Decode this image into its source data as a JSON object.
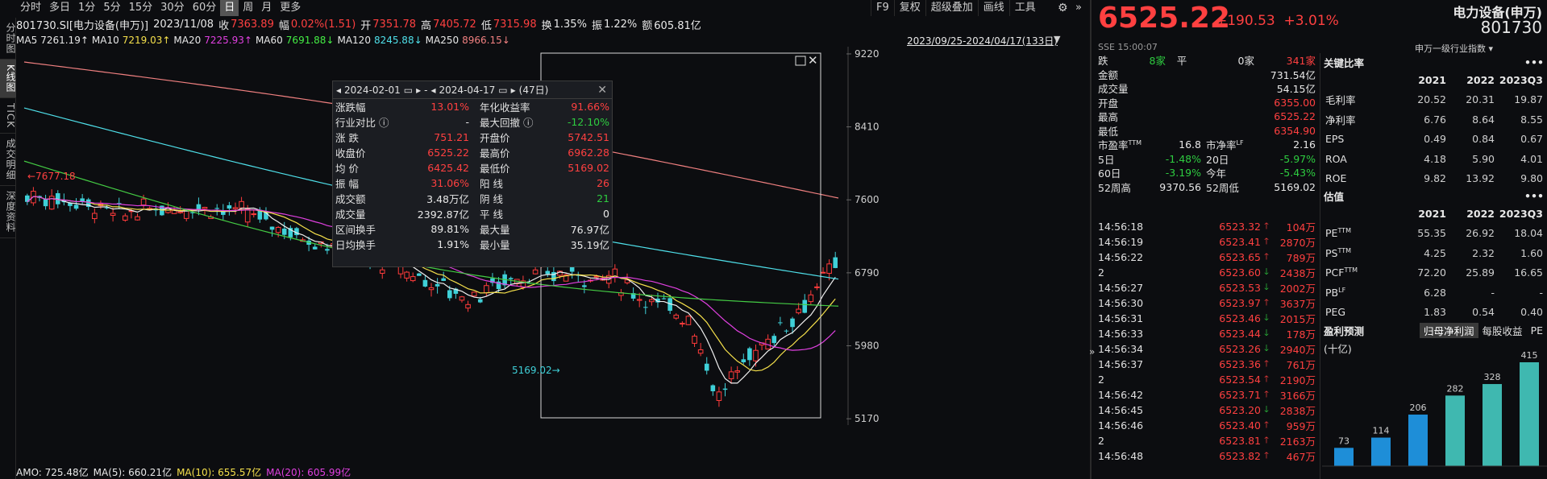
{
  "nav": {
    "vertical": [
      "分时图",
      "K线图",
      "TICK",
      "成交明细",
      "深度资料"
    ],
    "vertical_active": 1
  },
  "periods": {
    "items": [
      "分时",
      "多日",
      "1分",
      "5分",
      "15分",
      "30分",
      "60分",
      "日",
      "周",
      "月",
      "更多"
    ],
    "active": 7
  },
  "tools": [
    "F9",
    "复权",
    "超级叠加",
    "画线",
    "工具"
  ],
  "info": {
    "code": "801730.SI[电力设备(申万)]",
    "date": "2023/11/08",
    "close_label": "收",
    "close": "7363.89",
    "amp_label": "幅",
    "amp": "0.02%(1.51)",
    "open_label": "开",
    "open": "7351.78",
    "high_label": "高",
    "high": "7405.72",
    "low_label": "低",
    "low": "7315.98",
    "turn_label": "换",
    "turn": "1.35%",
    "zhen_label": "振",
    "zhen": "1.22%",
    "amt_label": "额",
    "amt": "605.81亿"
  },
  "ma": {
    "ma5_label": "MA5",
    "ma5": "7261.19↑",
    "ma10_label": "MA10",
    "ma10": "7219.03↑",
    "ma20_label": "MA20",
    "ma20": "7225.93↑",
    "ma60_label": "MA60",
    "ma60": "7691.88↓",
    "ma120_label": "MA120",
    "ma120": "8245.88↓",
    "ma250_label": "MA250",
    "ma250": "8966.15↓"
  },
  "range_label": "2023/09/25-2024/04/17(133日)",
  "chart_data": {
    "type": "candlestick",
    "y_ticks": [
      "9220",
      "8410",
      "7600",
      "6790",
      "5980",
      "5170"
    ],
    "y_tick_values": [
      9220,
      8410,
      7600,
      6790,
      5980,
      5170
    ],
    "ylim": [
      5100,
      9300
    ],
    "annotations": [
      "7677.18",
      "5169.02"
    ],
    "ma_colors": {
      "ma5": "#f0f0f0",
      "ma10": "#f5e04b",
      "ma20": "#e040e0",
      "ma60": "#44cc44",
      "ma120": "#4fe0ea",
      "ma250": "#f08080"
    }
  },
  "popup": {
    "start": "2024-02-01",
    "dash": "-",
    "end": "2024-04-17",
    "days": "(47日)",
    "rows": [
      {
        "k1": "涨跌幅",
        "v1": "13.01%",
        "c1": "red",
        "k2": "年化收益率",
        "v2": "91.66%",
        "c2": "red"
      },
      {
        "k1": "行业对比 ⓘ",
        "v1": "-",
        "c1": "white",
        "k2": "最大回撤 ⓘ",
        "v2": "-12.10%",
        "c2": "green"
      },
      {
        "k1": "涨 跌",
        "v1": "751.21",
        "c1": "red",
        "k2": "开盘价",
        "v2": "5742.51",
        "c2": "red"
      },
      {
        "k1": "收盘价",
        "v1": "6525.22",
        "c1": "red",
        "k2": "最高价",
        "v2": "6962.28",
        "c2": "red"
      },
      {
        "k1": "均 价",
        "v1": "6425.42",
        "c1": "red",
        "k2": "最低价",
        "v2": "5169.02",
        "c2": "red"
      },
      {
        "k1": "振 幅",
        "v1": "31.06%",
        "c1": "red",
        "k2": "阳 线",
        "v2": "26",
        "c2": "red"
      },
      {
        "k1": "成交额",
        "v1": "3.48万亿",
        "c1": "white",
        "k2": "阴 线",
        "v2": "21",
        "c2": "green"
      },
      {
        "k1": "成交量",
        "v1": "2392.87亿",
        "c1": "white",
        "k2": "平 线",
        "v2": "0",
        "c2": "white"
      },
      {
        "k1": "区间换手",
        "v1": "89.81%",
        "c1": "white",
        "k2": "最大量",
        "v2": "76.97亿",
        "c2": "white"
      },
      {
        "k1": "日均换手",
        "v1": "1.91%",
        "c1": "white",
        "k2": "最小量",
        "v2": "35.19亿",
        "c2": "white"
      }
    ]
  },
  "amo": {
    "amo": "AMO: 725.48亿",
    "ma5": "MA(5): 660.21亿",
    "ma10": "MA(10): 655.57亿",
    "ma20": "MA(20): 605.99亿"
  },
  "quote": {
    "price": "6525.22",
    "change": "+190.53",
    "pct": "+3.01%",
    "name": "电力设备(申万)",
    "code": "801730",
    "exchange": "SSE",
    "time": "15:00:07",
    "industry": "申万一级行业指数",
    "updown": {
      "die_label": "跌",
      "die": "8家",
      "ping_label": "平",
      "ping": "0家",
      "zhang": "341家"
    },
    "rows": [
      {
        "k": "金额",
        "v": "731.54亿",
        "c": "white"
      },
      {
        "k": "成交量",
        "v": "54.15亿",
        "c": "white"
      },
      {
        "k": "开盘",
        "v": "6355.00",
        "c": "red"
      },
      {
        "k": "最高",
        "v": "6525.22",
        "c": "red"
      },
      {
        "k": "最低",
        "v": "6354.90",
        "c": "red"
      }
    ],
    "pairs": [
      {
        "k1": "市盈率TTM",
        "v1": "16.8",
        "c1": "white",
        "k2": "市净率LF",
        "v2": "2.16",
        "c2": "white"
      },
      {
        "k1": "5日",
        "v1": "-1.48%",
        "c1": "green",
        "k2": "20日",
        "v2": "-5.97%",
        "c2": "green"
      },
      {
        "k1": "60日",
        "v1": "-3.19%",
        "c1": "green",
        "k2": "今年",
        "v2": "-5.43%",
        "c2": "green"
      },
      {
        "k1": "52周高",
        "v1": "9370.56",
        "c1": "white",
        "k2": "52周低",
        "v2": "5169.02",
        "c2": "white"
      }
    ]
  },
  "ticks": [
    {
      "t": "14:56:18",
      "p": "6523.32",
      "d": "up",
      "q": "104万"
    },
    {
      "t": "14:56:19",
      "p": "6523.41",
      "d": "up",
      "q": "2870万"
    },
    {
      "t": "14:56:22",
      "p": "6523.65",
      "d": "up",
      "q": "789万"
    },
    {
      "t": "2",
      "p": "6523.60",
      "d": "down",
      "q": "2438万"
    },
    {
      "t": "14:56:27",
      "p": "6523.53",
      "d": "down",
      "q": "2002万"
    },
    {
      "t": "14:56:30",
      "p": "6523.97",
      "d": "up",
      "q": "3637万"
    },
    {
      "t": "14:56:31",
      "p": "6523.46",
      "d": "down",
      "q": "2015万"
    },
    {
      "t": "14:56:33",
      "p": "6523.44",
      "d": "down",
      "q": "178万"
    },
    {
      "t": "14:56:34",
      "p": "6523.26",
      "d": "down",
      "q": "2940万"
    },
    {
      "t": "14:56:37",
      "p": "6523.36",
      "d": "up",
      "q": "761万"
    },
    {
      "t": "2",
      "p": "6523.54",
      "d": "up",
      "q": "2190万"
    },
    {
      "t": "14:56:42",
      "p": "6523.71",
      "d": "up",
      "q": "3166万"
    },
    {
      "t": "14:56:45",
      "p": "6523.20",
      "d": "down",
      "q": "2838万"
    },
    {
      "t": "14:56:46",
      "p": "6523.40",
      "d": "up",
      "q": "959万"
    },
    {
      "t": "2",
      "p": "6523.81",
      "d": "up",
      "q": "2163万"
    },
    {
      "t": "14:56:48",
      "p": "6523.82",
      "d": "up",
      "q": "467万"
    }
  ],
  "ratios": {
    "title": "关键比率",
    "years": [
      "2021",
      "2022",
      "2023Q3"
    ],
    "rows": [
      {
        "k": "毛利率",
        "v": [
          "20.52",
          "20.31",
          "19.87"
        ]
      },
      {
        "k": "净利率",
        "v": [
          "6.76",
          "8.64",
          "8.55"
        ]
      },
      {
        "k": "EPS",
        "v": [
          "0.49",
          "0.84",
          "0.67"
        ]
      },
      {
        "k": "ROA",
        "v": [
          "4.18",
          "5.90",
          "4.01"
        ]
      },
      {
        "k": "ROE",
        "v": [
          "9.82",
          "13.92",
          "9.80"
        ]
      }
    ]
  },
  "valuation": {
    "title": "估值",
    "years": [
      "2021",
      "2022",
      "2023Q3"
    ],
    "rows": [
      {
        "k": "PETTM",
        "v": [
          "55.35",
          "26.92",
          "18.04"
        ]
      },
      {
        "k": "PSTTM",
        "v": [
          "4.25",
          "2.32",
          "1.60"
        ]
      },
      {
        "k": "PCFTTM",
        "v": [
          "72.20",
          "25.89",
          "16.65"
        ]
      },
      {
        "k": "PBLF",
        "v": [
          "6.28",
          "-",
          "-"
        ]
      },
      {
        "k": "PEG",
        "v": [
          "1.83",
          "0.54",
          "0.40"
        ]
      }
    ]
  },
  "forecast": {
    "title": "盈利预测",
    "tabs": [
      "归母净利润",
      "每股收益",
      "PE"
    ],
    "active": 0,
    "unit": "(十亿)",
    "bars": [
      {
        "label": "73",
        "value": 73,
        "color": "#1e8ed8"
      },
      {
        "label": "114",
        "value": 114,
        "color": "#1e8ed8"
      },
      {
        "label": "206",
        "value": 206,
        "color": "#1e8ed8"
      },
      {
        "label": "282",
        "value": 282,
        "color": "#3fb8b0"
      },
      {
        "label": "328",
        "value": 328,
        "color": "#3fb8b0"
      },
      {
        "label": "415",
        "value": 415,
        "color": "#3fb8b0"
      }
    ]
  }
}
